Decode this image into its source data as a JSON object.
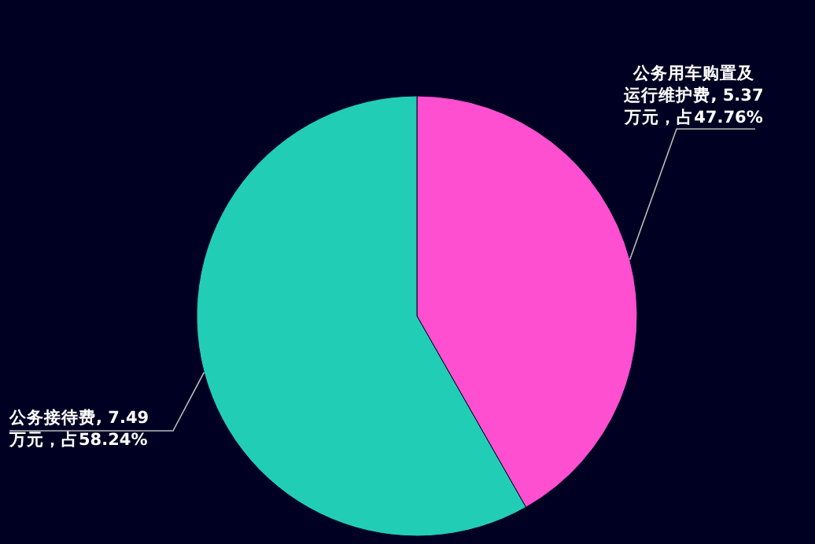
{
  "chart_data": {
    "type": "pie",
    "categories": [
      "公务用车购置及运行维护费, 5.37 万元，占47.76%",
      "公务接待费, 7.49 万元，占58.24%"
    ],
    "values": [
      5.37,
      7.49
    ],
    "colors": [
      "#fd4fd0",
      "#22cdb5"
    ],
    "legend": false
  }
}
